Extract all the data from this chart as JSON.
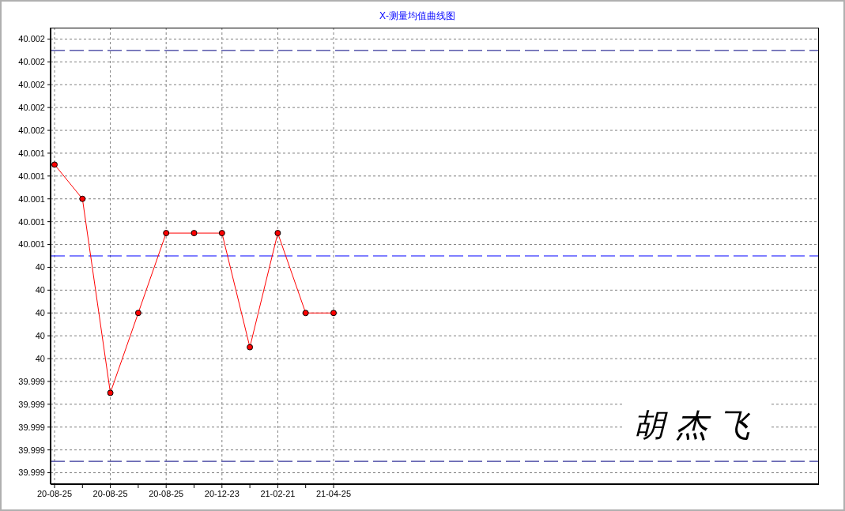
{
  "chart_data": {
    "type": "line",
    "title": "X-测量均值曲线图",
    "categories": [
      "20-08-25",
      null,
      "20-08-25",
      null,
      "20-08-25",
      null,
      "20-12-23",
      null,
      "21-02-21",
      null,
      "21-04-25"
    ],
    "series": [
      {
        "color": "#ff0000",
        "values": [
          40.0013,
          40.001,
          39.9993,
          40,
          40.0007,
          40.0007,
          40.0007,
          39.9997,
          40.0007,
          40,
          40
        ]
      }
    ],
    "ylim": [
      39.9985,
      40.0025
    ],
    "yticks": [
      {
        "value": 39.9986,
        "label": "39.999"
      },
      {
        "value": 39.9988,
        "label": "39.999"
      },
      39.999,
      {
        "value": 39.9992,
        "label": "39.999"
      },
      {
        "value": 39.9994,
        "label": "39.999"
      },
      {
        "value": 39.9996,
        "label": "40"
      },
      {
        "value": 39.9998,
        "label": "40"
      },
      40,
      {
        "value": 40.0002,
        "label": "40"
      },
      {
        "value": 40.0004,
        "label": "40"
      },
      {
        "value": 40.0006,
        "label": "40.001"
      },
      {
        "value": 40.0008,
        "label": "40.001"
      },
      40.001,
      {
        "value": 40.0012,
        "label": "40.001"
      },
      {
        "value": 40.0014,
        "label": "40.001"
      },
      {
        "value": 40.0016,
        "label": "40.002"
      },
      {
        "value": 40.0018,
        "label": "40.002"
      },
      40.002,
      {
        "value": 40.0022,
        "label": "40.002"
      },
      {
        "value": 40.0024,
        "label": "40.002"
      }
    ],
    "ref_lines": [
      {
        "axis": "y",
        "value": 40.0023,
        "color": "#000080",
        "line_style": "dashed"
      },
      {
        "axis": "y",
        "value": 40.0005,
        "color": "#0000ff",
        "line_style": "dashed"
      },
      {
        "axis": "y",
        "value": 39.9987,
        "color": "#000080",
        "line_style": "dashed"
      }
    ],
    "grid": true,
    "marker": "circle",
    "line_style": "solid",
    "annotations": [
      "胡杰飞"
    ]
  }
}
